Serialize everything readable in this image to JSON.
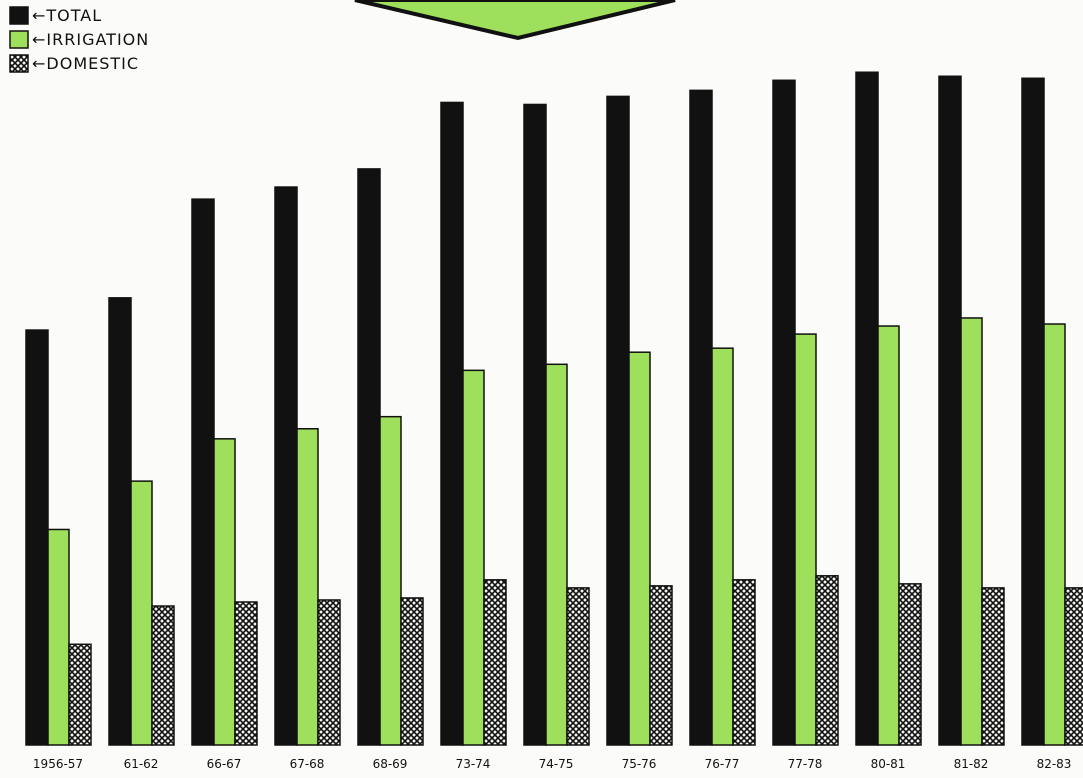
{
  "chart_data": {
    "type": "bar",
    "title": "",
    "xlabel": "",
    "ylabel": "",
    "ylim": [
      0,
      700
    ],
    "grid": false,
    "legend_position": "top-left",
    "categories": [
      "1956-57",
      "61-62",
      "66-67",
      "67-68",
      "68-69",
      "73-74",
      "74-75",
      "75-76",
      "76-77",
      "77-78",
      "80-81",
      "81-82",
      "82-83"
    ],
    "series": [
      {
        "name": "TOTAL",
        "color": "#111111",
        "pattern": "solid",
        "values": [
          412,
          444,
          542,
          554,
          572,
          638,
          636,
          644,
          650,
          660,
          668,
          664,
          662
        ]
      },
      {
        "name": "IRRIGATION",
        "color": "#9ee05c",
        "pattern": "solid",
        "values": [
          214,
          262,
          304,
          314,
          326,
          372,
          378,
          390,
          394,
          408,
          416,
          424,
          418
        ]
      },
      {
        "name": "DOMESTIC",
        "color": "#111111",
        "pattern": "crosshatch",
        "values": [
          100,
          138,
          142,
          144,
          146,
          164,
          156,
          158,
          164,
          168,
          160,
          156,
          156
        ]
      }
    ]
  }
}
